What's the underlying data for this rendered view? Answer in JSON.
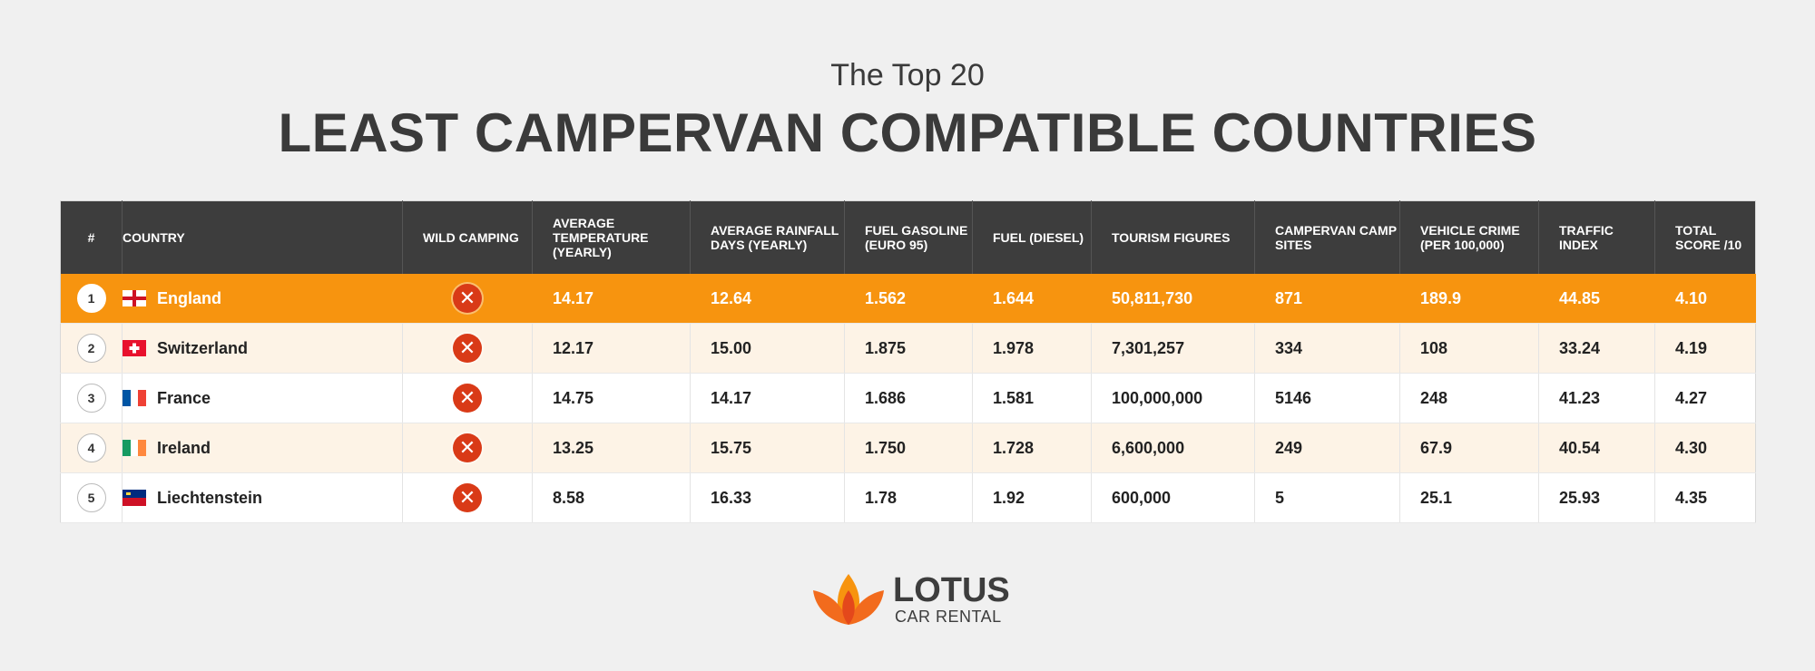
{
  "header": {
    "subtitle": "The Top 20",
    "title": "LEAST CAMPERVAN COMPATIBLE COUNTRIES"
  },
  "table": {
    "columns": [
      "#",
      "COUNTRY",
      "WILD CAMPING",
      "AVERAGE TEMPERATURE (YEARLY)",
      "AVERAGE RAINFALL DAYS (YEARLY)",
      "FUEL GASOLINE (EURO 95)",
      "FUEL (DIESEL)",
      "TOURISM FIGURES",
      "CAMPERVAN CAMP SITES",
      "VEHICLE CRIME (PER 100,000)",
      "TRAFFIC INDEX",
      "TOTAL SCORE /10"
    ],
    "rows": [
      {
        "rank": "1",
        "country": "England",
        "flag": "england-flag-icon",
        "wild_camping": "no",
        "temp": "14.17",
        "rain": "12.64",
        "gasoline": "1.562",
        "diesel": "1.644",
        "tourism": "50,811,730",
        "sites": "871",
        "crime": "189.9",
        "traffic": "44.85",
        "score": "4.10"
      },
      {
        "rank": "2",
        "country": "Switzerland",
        "flag": "switzerland-flag-icon",
        "wild_camping": "no",
        "temp": "12.17",
        "rain": "15.00",
        "gasoline": "1.875",
        "diesel": "1.978",
        "tourism": "7,301,257",
        "sites": "334",
        "crime": "108",
        "traffic": "33.24",
        "score": "4.19"
      },
      {
        "rank": "3",
        "country": "France",
        "flag": "france-flag-icon",
        "wild_camping": "no",
        "temp": "14.75",
        "rain": "14.17",
        "gasoline": "1.686",
        "diesel": "1.581",
        "tourism": "100,000,000",
        "sites": "5146",
        "crime": "248",
        "traffic": "41.23",
        "score": "4.27"
      },
      {
        "rank": "4",
        "country": "Ireland",
        "flag": "ireland-flag-icon",
        "wild_camping": "no",
        "temp": "13.25",
        "rain": "15.75",
        "gasoline": "1.750",
        "diesel": "1.728",
        "tourism": "6,600,000",
        "sites": "249",
        "crime": "67.9",
        "traffic": "40.54",
        "score": "4.30"
      },
      {
        "rank": "5",
        "country": "Liechtenstein",
        "flag": "liechtenstein-flag-icon",
        "wild_camping": "no",
        "temp": "8.58",
        "rain": "16.33",
        "gasoline": "1.78",
        "diesel": "1.92",
        "tourism": "600,000",
        "sites": "5",
        "crime": "25.1",
        "traffic": "25.93",
        "score": "4.35"
      }
    ]
  },
  "logo": {
    "line1": "LOTUS",
    "line2": "CAR RENTAL"
  },
  "colors": {
    "highlight": "#f7940f",
    "header_bg": "#3d3d3d",
    "x_icon": "#d93a17"
  }
}
